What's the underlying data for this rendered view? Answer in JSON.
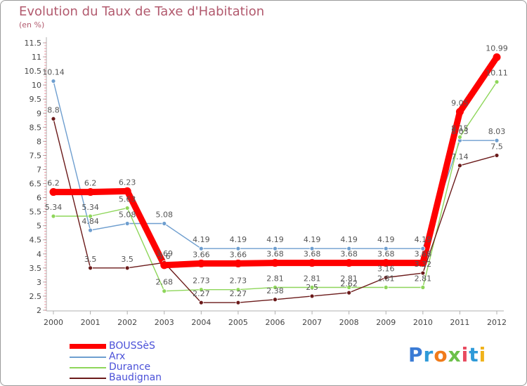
{
  "chart_data": {
    "type": "line",
    "title": "Evolution du Taux de Taxe d'Habitation",
    "subtitle": "(en %)",
    "x": [
      "2000",
      "2001",
      "2002",
      "2003",
      "2004",
      "2005",
      "2006",
      "2007",
      "2008",
      "2009",
      "2010",
      "2011",
      "2012"
    ],
    "ylim": [
      2,
      11.5
    ],
    "yticks": [
      "2",
      "2.5",
      "3",
      "3.5",
      "4",
      "4.5",
      "5",
      "5.5",
      "6",
      "6.5",
      "7",
      "7.5",
      "8",
      "8.5",
      "9",
      "9.5",
      "10",
      "10.5",
      "11",
      "11.5"
    ],
    "grid": false,
    "legend_position": "bottom-left",
    "series": [
      {
        "name": "BOUSSèS",
        "color": "#ff0000",
        "values": [
          6.2,
          6.2,
          6.23,
          3.6,
          3.66,
          3.66,
          3.68,
          3.68,
          3.68,
          3.68,
          3.68,
          9.05,
          10.99
        ],
        "labels": [
          "6.2",
          "6.2",
          "6.23",
          "3.6",
          "3.66",
          "3.66",
          "3.68",
          "3.68",
          "3.68",
          "3.68",
          "3.68",
          "9.05",
          "10.99"
        ]
      },
      {
        "name": "Arx",
        "color": "#6e9ecf",
        "values": [
          10.14,
          4.84,
          5.08,
          5.08,
          4.19,
          4.19,
          4.19,
          4.19,
          4.19,
          4.19,
          4.19,
          8.03,
          8.03
        ],
        "labels": [
          "10.14",
          "4.84",
          "5.08",
          "5.08",
          "4.19",
          "4.19",
          "4.19",
          "4.19",
          "4.19",
          "4.19",
          "4.19",
          "8.03",
          "8.03"
        ]
      },
      {
        "name": "Durance",
        "color": "#8ed65a",
        "values": [
          5.34,
          5.34,
          5.63,
          2.68,
          2.73,
          2.73,
          2.81,
          2.81,
          2.81,
          2.81,
          2.81,
          8.15,
          10.11
        ],
        "labels": [
          "5.34",
          "5.34",
          "5.63",
          "2.68",
          "2.73",
          "2.73",
          "2.81",
          "2.81",
          "2.81",
          "2.81",
          "2.81",
          "8.15",
          "10.11"
        ]
      },
      {
        "name": "Baudignan",
        "color": "#6b1a1a",
        "values": [
          8.8,
          3.5,
          3.5,
          3.69,
          2.27,
          2.27,
          2.38,
          2.5,
          2.62,
          3.16,
          3.32,
          7.14,
          7.5
        ],
        "labels": [
          "8.8",
          "3.5",
          "3.5",
          "3.69",
          "2.27",
          "2.27",
          "2.38",
          "2.5",
          "2.62",
          "3.16",
          "3.32",
          "7.14",
          "7.5"
        ]
      }
    ]
  },
  "legend": {
    "items": [
      "BOUSSèS",
      "Arx",
      "Durance",
      "Baudignan"
    ]
  },
  "logo": {
    "letters": [
      "P",
      "r",
      "o",
      "x",
      "i",
      "t",
      "i"
    ],
    "colors": [
      "#3a7bd5",
      "#2e9ad8",
      "#f07b1a",
      "#6cc04a",
      "#e84a5f",
      "#2e9ad8",
      "#f0b21a"
    ]
  }
}
